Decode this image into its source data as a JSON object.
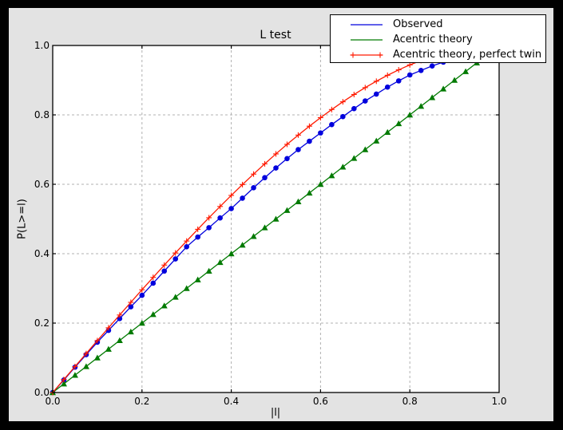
{
  "window": {
    "background": "#000000",
    "figure_background": "#e3e3e3",
    "plot_background": "#ffffff",
    "frame_color": "#000000",
    "grid_color": "#b0b0b0"
  },
  "chart_data": {
    "type": "line",
    "title": "L test",
    "xlabel": "|l|",
    "ylabel": "P(L>=l)",
    "xlim": [
      0,
      1
    ],
    "ylim": [
      0,
      1
    ],
    "x_tick_labels": [
      "0.0",
      "0.2",
      "0.4",
      "0.6",
      "0.8",
      "1.0"
    ],
    "y_tick_labels": [
      "0.0",
      "0.2",
      "0.4",
      "0.6",
      "0.8",
      "1.0"
    ],
    "grid": true,
    "grid_ticks": [
      0.2,
      0.4,
      0.6,
      0.8
    ],
    "legend_position": "upper right, overlapping plot corner",
    "x": [
      0,
      0.025,
      0.05,
      0.075,
      0.1,
      0.125,
      0.15,
      0.175,
      0.2,
      0.225,
      0.25,
      0.275,
      0.3,
      0.325,
      0.35,
      0.375,
      0.4,
      0.425,
      0.45,
      0.475,
      0.5,
      0.525,
      0.55,
      0.575,
      0.6,
      0.625,
      0.65,
      0.675,
      0.7,
      0.725,
      0.75,
      0.775,
      0.8,
      0.825,
      0.85,
      0.875,
      0.9,
      0.925,
      0.95,
      0.975,
      1
    ],
    "series": [
      {
        "name": "Observed",
        "color": "#0000dd",
        "marker": "circle",
        "values": [
          0,
          0.036,
          0.073,
          0.109,
          0.145,
          0.179,
          0.213,
          0.247,
          0.28,
          0.315,
          0.35,
          0.385,
          0.42,
          0.448,
          0.475,
          0.503,
          0.53,
          0.56,
          0.59,
          0.619,
          0.647,
          0.674,
          0.7,
          0.724,
          0.748,
          0.772,
          0.795,
          0.818,
          0.84,
          0.86,
          0.88,
          0.898,
          0.915,
          0.928,
          0.941,
          0.952,
          0.962,
          0.972,
          0.982,
          0.991,
          1
        ]
      },
      {
        "name": "Acentric theory",
        "color": "#007a00",
        "marker": "triangle-up",
        "values": [
          0,
          0.025,
          0.05,
          0.075,
          0.1,
          0.125,
          0.15,
          0.175,
          0.2,
          0.225,
          0.25,
          0.275,
          0.3,
          0.325,
          0.35,
          0.375,
          0.4,
          0.425,
          0.45,
          0.475,
          0.5,
          0.525,
          0.55,
          0.575,
          0.6,
          0.625,
          0.65,
          0.675,
          0.7,
          0.725,
          0.75,
          0.775,
          0.8,
          0.825,
          0.85,
          0.875,
          0.9,
          0.925,
          0.95,
          0.975,
          1
        ]
      },
      {
        "name": "Acentric theory, perfect twin",
        "color": "#ff1a00",
        "marker": "plus",
        "values": [
          0,
          0.0375,
          0.0749,
          0.1123,
          0.1495,
          0.1865,
          0.2233,
          0.2598,
          0.296,
          0.3318,
          0.3672,
          0.4021,
          0.4365,
          0.4703,
          0.5036,
          0.5361,
          0.568,
          0.5991,
          0.6294,
          0.6589,
          0.6875,
          0.7151,
          0.7418,
          0.7674,
          0.792,
          0.8154,
          0.8377,
          0.8587,
          0.8785,
          0.897,
          0.9141,
          0.9298,
          0.944,
          0.9567,
          0.9679,
          0.9775,
          0.9855,
          0.9918,
          0.9963,
          0.9991,
          1
        ]
      }
    ]
  }
}
